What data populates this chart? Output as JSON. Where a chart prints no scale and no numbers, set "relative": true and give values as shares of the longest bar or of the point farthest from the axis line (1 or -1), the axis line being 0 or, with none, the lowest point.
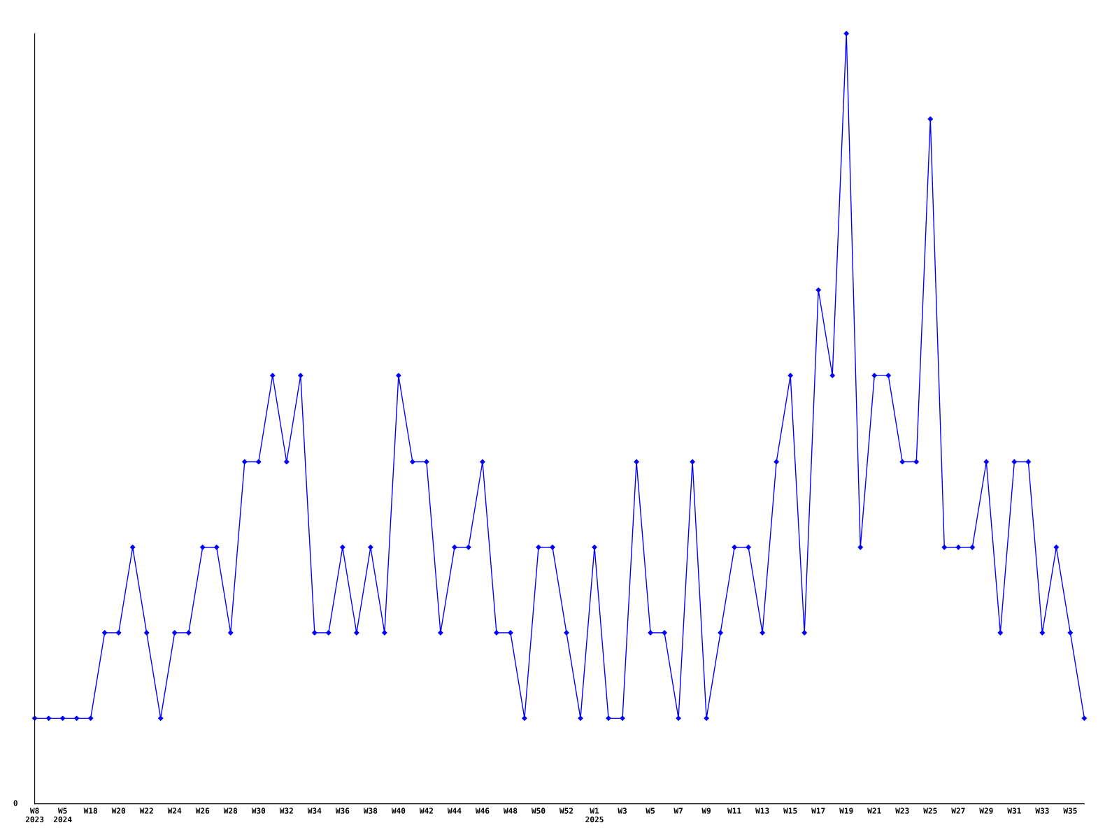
{
  "chart_data": {
    "type": "line",
    "relative": true,
    "annotations": [
      "0"
    ],
    "categories": [
      "W8\n2023",
      null,
      "W5\n2024",
      null,
      "W18",
      null,
      "W20",
      null,
      "W22",
      null,
      "W24",
      null,
      "W26",
      null,
      "W28",
      null,
      "W30",
      null,
      "W32",
      null,
      "W34",
      null,
      "W36",
      null,
      "W38",
      null,
      "W40",
      null,
      "W42",
      null,
      "W44",
      null,
      "W46",
      null,
      "W48",
      null,
      "W50",
      null,
      "W52",
      null,
      "W1\n2025",
      null,
      "W3",
      null,
      "W5",
      null,
      "W7",
      null,
      "W9",
      null,
      "W11",
      null,
      "W13",
      null,
      "W15",
      null,
      "W17",
      null,
      "W19",
      null,
      "W21",
      null,
      "W23",
      null,
      "W25",
      null,
      "W27",
      null,
      "W29",
      null,
      "W31",
      null,
      "W33",
      null,
      "W35",
      null
    ],
    "series": [
      {
        "color": "#0000ff",
        "values": [
          0.111,
          0.111,
          0.111,
          0.111,
          0.111,
          0.222,
          0.222,
          0.333,
          0.222,
          0.111,
          0.222,
          0.222,
          0.333,
          0.333,
          0.222,
          0.444,
          0.444,
          0.556,
          0.444,
          0.556,
          0.222,
          0.222,
          0.333,
          0.222,
          0.333,
          0.222,
          0.556,
          0.444,
          0.444,
          0.222,
          0.333,
          0.333,
          0.444,
          0.222,
          0.222,
          0.111,
          0.333,
          0.333,
          0.222,
          0.111,
          0.333,
          0.111,
          0.111,
          0.444,
          0.222,
          0.222,
          0.111,
          0.444,
          0.111,
          0.222,
          0.333,
          0.333,
          0.222,
          0.444,
          0.556,
          0.222,
          0.667,
          0.556,
          1,
          0.333,
          0.556,
          0.556,
          0.444,
          0.444,
          0.889,
          0.333,
          0.333,
          0.333,
          0.444,
          0.222,
          0.444,
          0.444,
          0.222,
          0.333,
          0.222,
          0.111
        ]
      }
    ],
    "marker": "diamond",
    "line_style": "solid",
    "grid": false,
    "legend": false
  }
}
